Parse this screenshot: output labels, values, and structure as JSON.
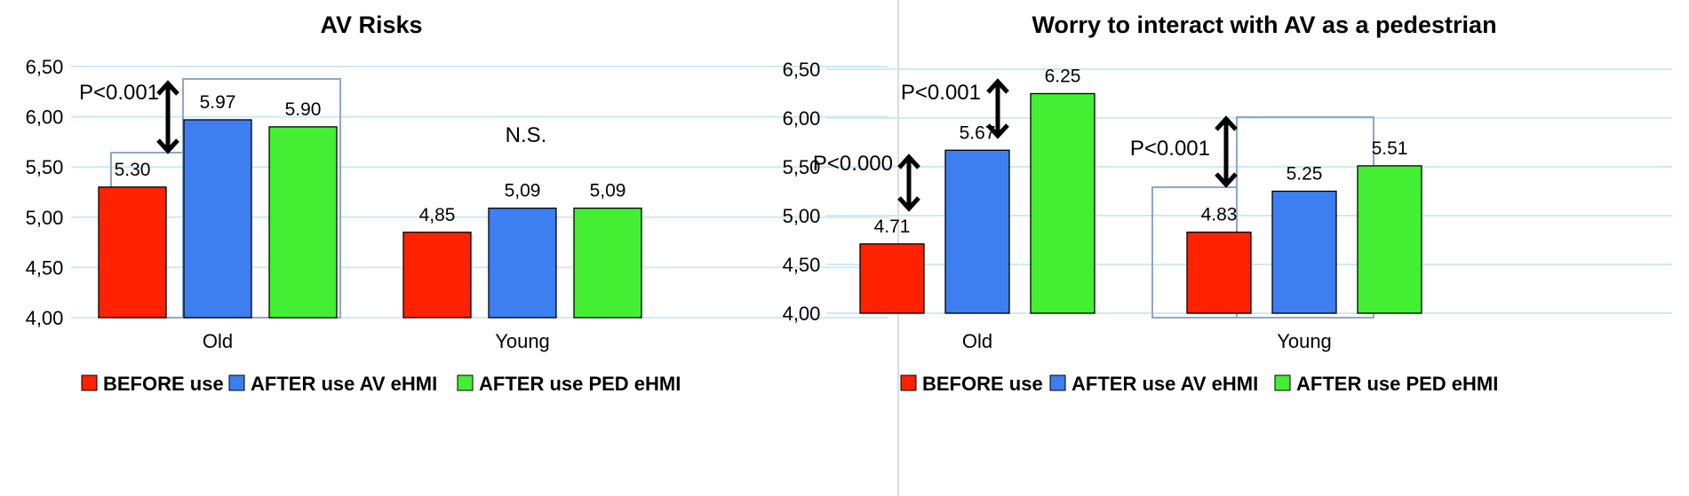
{
  "legend": [
    {
      "label": "BEFORE use",
      "color": "#ff2200"
    },
    {
      "label": "AFTER use AV eHMI",
      "color": "#3d7ef0"
    },
    {
      "label": "AFTER use PED eHMI",
      "color": "#44ee33"
    }
  ],
  "chart_data": [
    {
      "type": "bar",
      "title": "AV Risks",
      "categories": [
        "Old",
        "Young"
      ],
      "ylim": [
        4.0,
        6.5
      ],
      "y_ticks": [
        "4,00",
        "4,50",
        "5,00",
        "5,50",
        "6,00",
        "6,50"
      ],
      "grid": true,
      "legend_position": "bottom",
      "series": [
        {
          "name": "BEFORE use",
          "values": [
            5.3,
            4.85
          ],
          "labels": [
            "5.30",
            "4,85"
          ]
        },
        {
          "name": "AFTER use AV eHMI",
          "values": [
            5.97,
            5.09
          ],
          "labels": [
            "5.97",
            "5,09"
          ]
        },
        {
          "name": "AFTER use PED eHMI",
          "values": [
            5.9,
            5.09
          ],
          "labels": [
            "5.90",
            "5,09"
          ]
        }
      ],
      "annotations": [
        {
          "text": "P<0.001",
          "group": "Old",
          "between": [
            "BEFORE use",
            "AFTER use AV eHMI"
          ]
        },
        {
          "text": "N.S.",
          "group": "Young"
        }
      ]
    },
    {
      "type": "bar",
      "title": "Worry to interact with AV as a pedestrian",
      "categories": [
        "Old",
        "Young"
      ],
      "ylim": [
        4.0,
        6.5
      ],
      "y_ticks": [
        "4,00",
        "4,50",
        "5,00",
        "5,50",
        "6,00",
        "6,50"
      ],
      "grid": true,
      "legend_position": "bottom",
      "series": [
        {
          "name": "BEFORE use",
          "values": [
            4.71,
            4.83
          ],
          "labels": [
            "4.71",
            "4.83"
          ]
        },
        {
          "name": "AFTER use AV eHMI",
          "values": [
            5.67,
            5.25
          ],
          "labels": [
            "5.67",
            "5.25"
          ]
        },
        {
          "name": "AFTER use PED eHMI",
          "values": [
            6.25,
            5.51
          ],
          "labels": [
            "6.25",
            "5.51"
          ]
        }
      ],
      "annotations": [
        {
          "text": "P<0.000",
          "group": "Old",
          "between": [
            "BEFORE use",
            "AFTER use AV eHMI"
          ]
        },
        {
          "text": "P<0.001",
          "group": "Old",
          "between": [
            "AFTER use AV eHMI",
            "AFTER use PED eHMI"
          ]
        },
        {
          "text": "P<0.001",
          "group": "Young",
          "between": [
            "BEFORE use",
            "AFTER use AV eHMI"
          ]
        }
      ]
    }
  ]
}
